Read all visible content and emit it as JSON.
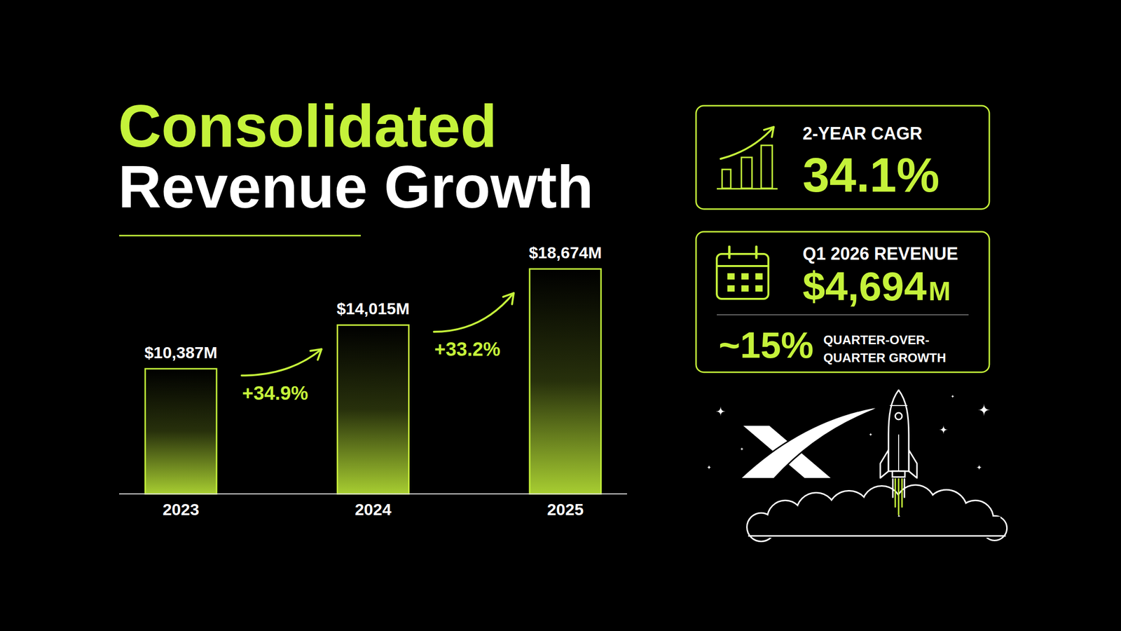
{
  "chart_data": {
    "type": "bar",
    "title": "Consolidated Revenue Growth",
    "categories": [
      "2023",
      "2024",
      "2025"
    ],
    "values": [
      10387,
      14015,
      18674
    ],
    "value_labels": [
      "$10,387M",
      "$14,015M",
      "$18,674M"
    ],
    "color": "#c5f23a",
    "ylim": [
      0,
      20000
    ],
    "grid": false,
    "data_labels": true,
    "tick_labels": "x",
    "annotations": [
      {
        "value": 34.9,
        "label": "+34.9%"
      },
      {
        "value": 33.2,
        "label": "+33.2%"
      }
    ]
  },
  "kpis": [
    {
      "label": "2-YEAR CAGR",
      "value": 34.1,
      "value_label": "34.1%"
    },
    {
      "label": "Q1 2026 REVENUE",
      "value": 4694,
      "value_label": "$4,694M",
      "sub_value": 15,
      "sub_value_label": "~15%",
      "sub_label": "QUARTER-OVER-QUARTER GROWTH"
    }
  ]
}
